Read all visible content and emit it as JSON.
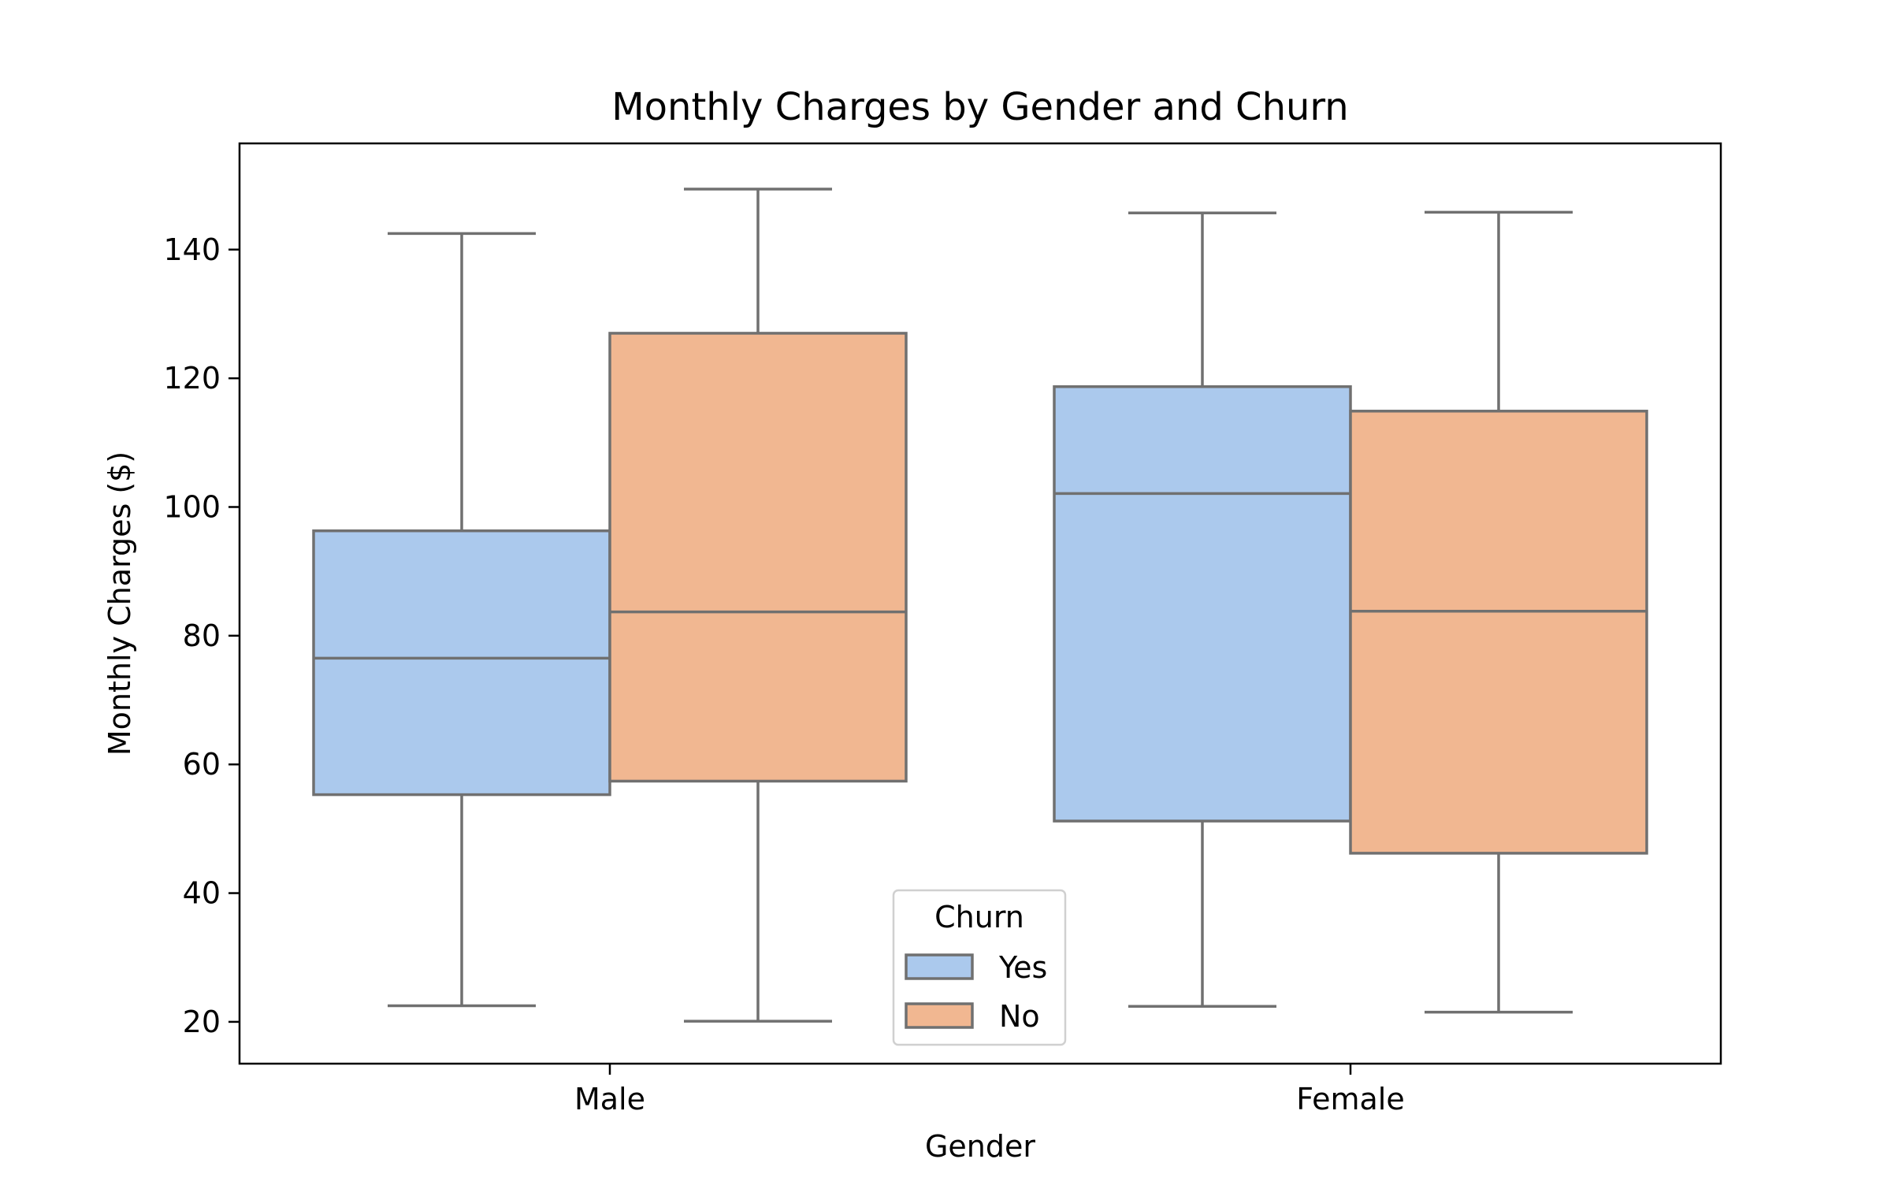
{
  "chart_data": {
    "type": "box",
    "title": "Monthly Charges by Gender and Churn",
    "xlabel": "Gender",
    "ylabel": "Monthly Charges ($)",
    "ylim": [
      13.5,
      156.5
    ],
    "yticks": [
      20,
      40,
      60,
      80,
      100,
      120,
      140
    ],
    "categories": [
      "Male",
      "Female"
    ],
    "legend": {
      "title": "Churn",
      "position": "lower-center"
    },
    "series": [
      {
        "name": "Yes",
        "color": "#abc9ed",
        "boxes": [
          {
            "category": "Male",
            "whisker_low": 22.5,
            "q1": 55.3,
            "median": 76.5,
            "q3": 96.3,
            "whisker_high": 142.5
          },
          {
            "category": "Female",
            "whisker_low": 22.4,
            "q1": 51.2,
            "median": 102.1,
            "q3": 118.7,
            "whisker_high": 145.7
          }
        ]
      },
      {
        "name": "No",
        "color": "#f1b791",
        "boxes": [
          {
            "category": "Male",
            "whisker_low": 20.1,
            "q1": 57.4,
            "median": 83.7,
            "q3": 127.0,
            "whisker_high": 149.4
          },
          {
            "category": "Female",
            "whisker_low": 21.5,
            "q1": 46.2,
            "median": 83.8,
            "q3": 114.9,
            "whisker_high": 145.8
          }
        ]
      }
    ],
    "grid": false
  }
}
